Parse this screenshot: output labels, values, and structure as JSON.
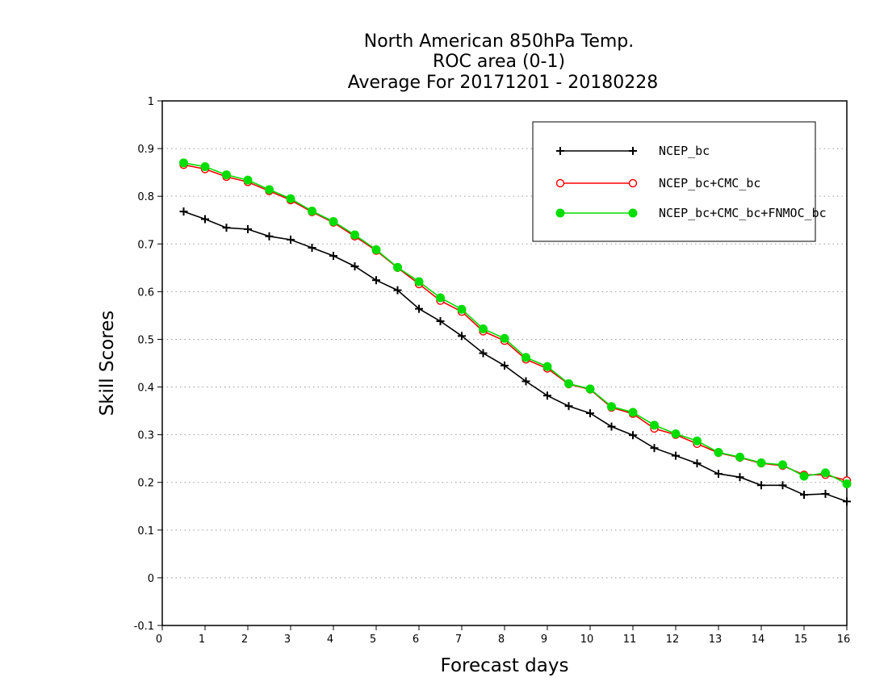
{
  "chart_data": {
    "type": "line",
    "title_lines": [
      "North American 850hPa Temp.",
      "ROC area (0-1)",
      "Average For 20171201 - 20180228"
    ],
    "xlabel": "Forecast days",
    "ylabel": "Skill Scores",
    "xlim": [
      0,
      16
    ],
    "ylim": [
      -0.1,
      1
    ],
    "xticks": [
      "0",
      "1",
      "2",
      "3",
      "4",
      "5",
      "6",
      "7",
      "8",
      "9",
      "10",
      "11",
      "12",
      "13",
      "14",
      "15",
      "16"
    ],
    "yticks": [
      "-0.1",
      "0",
      "0.1",
      "0.2",
      "0.3",
      "0.4",
      "0.5",
      "0.6",
      "0.7",
      "0.8",
      "0.9",
      "1"
    ],
    "grid": "horizontal-dotted",
    "legend_position": "top-right",
    "x": [
      0.5,
      1,
      1.5,
      2,
      2.5,
      3,
      3.5,
      4,
      4.5,
      5,
      5.5,
      6,
      6.5,
      7,
      7.5,
      8,
      8.5,
      9,
      9.5,
      10,
      10.5,
      11,
      11.5,
      12,
      12.5,
      13,
      13.5,
      14,
      14.5,
      15,
      15.5,
      16
    ],
    "series": [
      {
        "name": "NCEP_bc",
        "color": "#000000",
        "marker": "plus",
        "values": [
          0.768,
          0.752,
          0.734,
          0.731,
          0.716,
          0.709,
          0.692,
          0.675,
          0.653,
          0.624,
          0.603,
          0.564,
          0.538,
          0.507,
          0.471,
          0.445,
          0.412,
          0.382,
          0.36,
          0.345,
          0.317,
          0.299,
          0.272,
          0.256,
          0.24,
          0.218,
          0.211,
          0.194,
          0.194,
          0.174,
          0.176,
          0.16
        ]
      },
      {
        "name": "NCEP_bc+CMC_bc",
        "color": "#ff0000",
        "marker": "open-circle",
        "values": [
          0.866,
          0.857,
          0.841,
          0.83,
          0.811,
          0.792,
          0.767,
          0.745,
          0.716,
          0.686,
          0.65,
          0.616,
          0.581,
          0.558,
          0.517,
          0.497,
          0.458,
          0.439,
          0.406,
          0.395,
          0.357,
          0.344,
          0.313,
          0.3,
          0.281,
          0.262,
          0.252,
          0.24,
          0.235,
          0.216,
          0.216,
          0.204
        ]
      },
      {
        "name": "NCEP_bc+CMC_bc+FNMOC_bc",
        "color": "#00dd00",
        "marker": "filled-circle",
        "values": [
          0.87,
          0.862,
          0.845,
          0.834,
          0.814,
          0.795,
          0.769,
          0.747,
          0.719,
          0.688,
          0.651,
          0.621,
          0.587,
          0.563,
          0.522,
          0.502,
          0.462,
          0.443,
          0.407,
          0.396,
          0.359,
          0.347,
          0.32,
          0.302,
          0.287,
          0.263,
          0.253,
          0.241,
          0.237,
          0.213,
          0.22,
          0.197
        ]
      }
    ]
  }
}
